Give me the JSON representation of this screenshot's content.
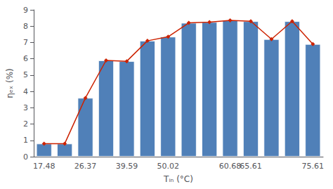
{
  "chart_data": {
    "type": "bar",
    "xlabel": "Tᵢₙ (°C)",
    "ylabel": "ηₑₓ (%)",
    "categories": [
      "17.48",
      null,
      "26.37",
      null,
      "39.59",
      null,
      "50.02",
      null,
      null,
      "60.68",
      "65.61",
      null,
      null,
      "75.61"
    ],
    "series": [
      {
        "type": "bar",
        "color": "#5080b8",
        "values": [
          0.8,
          0.8,
          3.6,
          5.9,
          5.85,
          7.1,
          7.35,
          8.2,
          8.25,
          8.35,
          8.3,
          7.2,
          8.3,
          6.9
        ]
      },
      {
        "type": "line",
        "color": "#cc2200",
        "marker": "diamond",
        "values": [
          0.8,
          0.8,
          3.6,
          5.9,
          5.85,
          7.1,
          7.35,
          8.2,
          8.25,
          8.35,
          8.3,
          7.2,
          8.3,
          6.9
        ]
      }
    ],
    "ylim": [
      0,
      9
    ],
    "yticks": [
      0,
      1,
      2,
      3,
      4,
      5,
      6,
      7,
      8,
      9
    ],
    "grid": false
  }
}
